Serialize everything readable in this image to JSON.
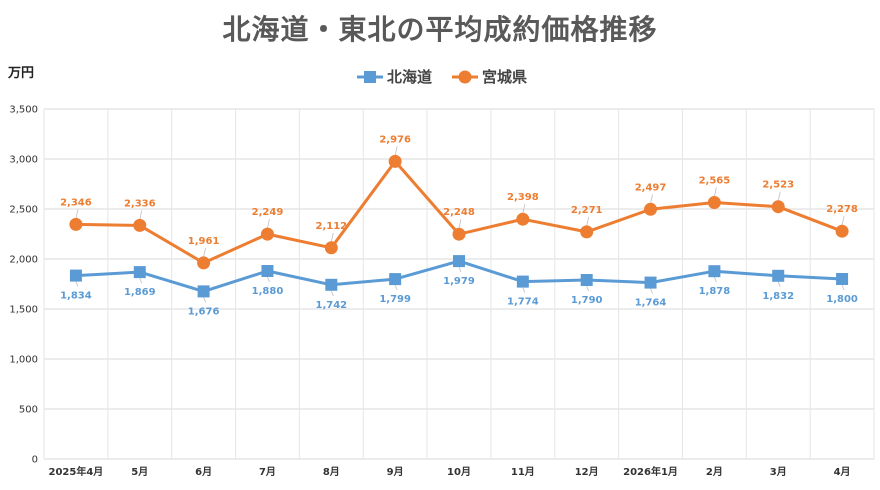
{
  "chart_data": {
    "type": "line",
    "title": "北海道・東北の平均成約価格推移",
    "ylabel": "万円",
    "xlabel": "",
    "ylim": [
      0,
      3500
    ],
    "yticks": [
      0,
      500,
      1000,
      1500,
      2000,
      2500,
      3000,
      3500
    ],
    "ytick_labels": [
      "0",
      "500",
      "1,000",
      "1,500",
      "2,000",
      "2,500",
      "3,000",
      "3,500"
    ],
    "grid": true,
    "legend_position": "top",
    "categories": [
      "2025年4月",
      "5月",
      "6月",
      "7月",
      "8月",
      "9月",
      "10月",
      "11月",
      "12月",
      "2026年1月",
      "2月",
      "3月",
      "4月"
    ],
    "series": [
      {
        "name": "北海道",
        "color": "#5B9BD5",
        "marker": "square",
        "values": [
          1834,
          1869,
          1676,
          1880,
          1742,
          1799,
          1979,
          1774,
          1790,
          1764,
          1878,
          1832,
          1800
        ],
        "labels": [
          "1,834",
          "1,869",
          "1,676",
          "1,880",
          "1,742",
          "1,799",
          "1,979",
          "1,774",
          "1,790",
          "1,764",
          "1,878",
          "1,832",
          "1,800"
        ]
      },
      {
        "name": "宮城県",
        "color": "#ED7D31",
        "marker": "circle",
        "values": [
          2346,
          2336,
          1961,
          2249,
          2112,
          2976,
          2248,
          2398,
          2271,
          2497,
          2565,
          2523,
          2278
        ],
        "labels": [
          "2,346",
          "2,336",
          "1,961",
          "2,249",
          "2,112",
          "2,976",
          "2,248",
          "2,398",
          "2,271",
          "2,497",
          "2,565",
          "2,523",
          "2,278"
        ]
      }
    ]
  }
}
